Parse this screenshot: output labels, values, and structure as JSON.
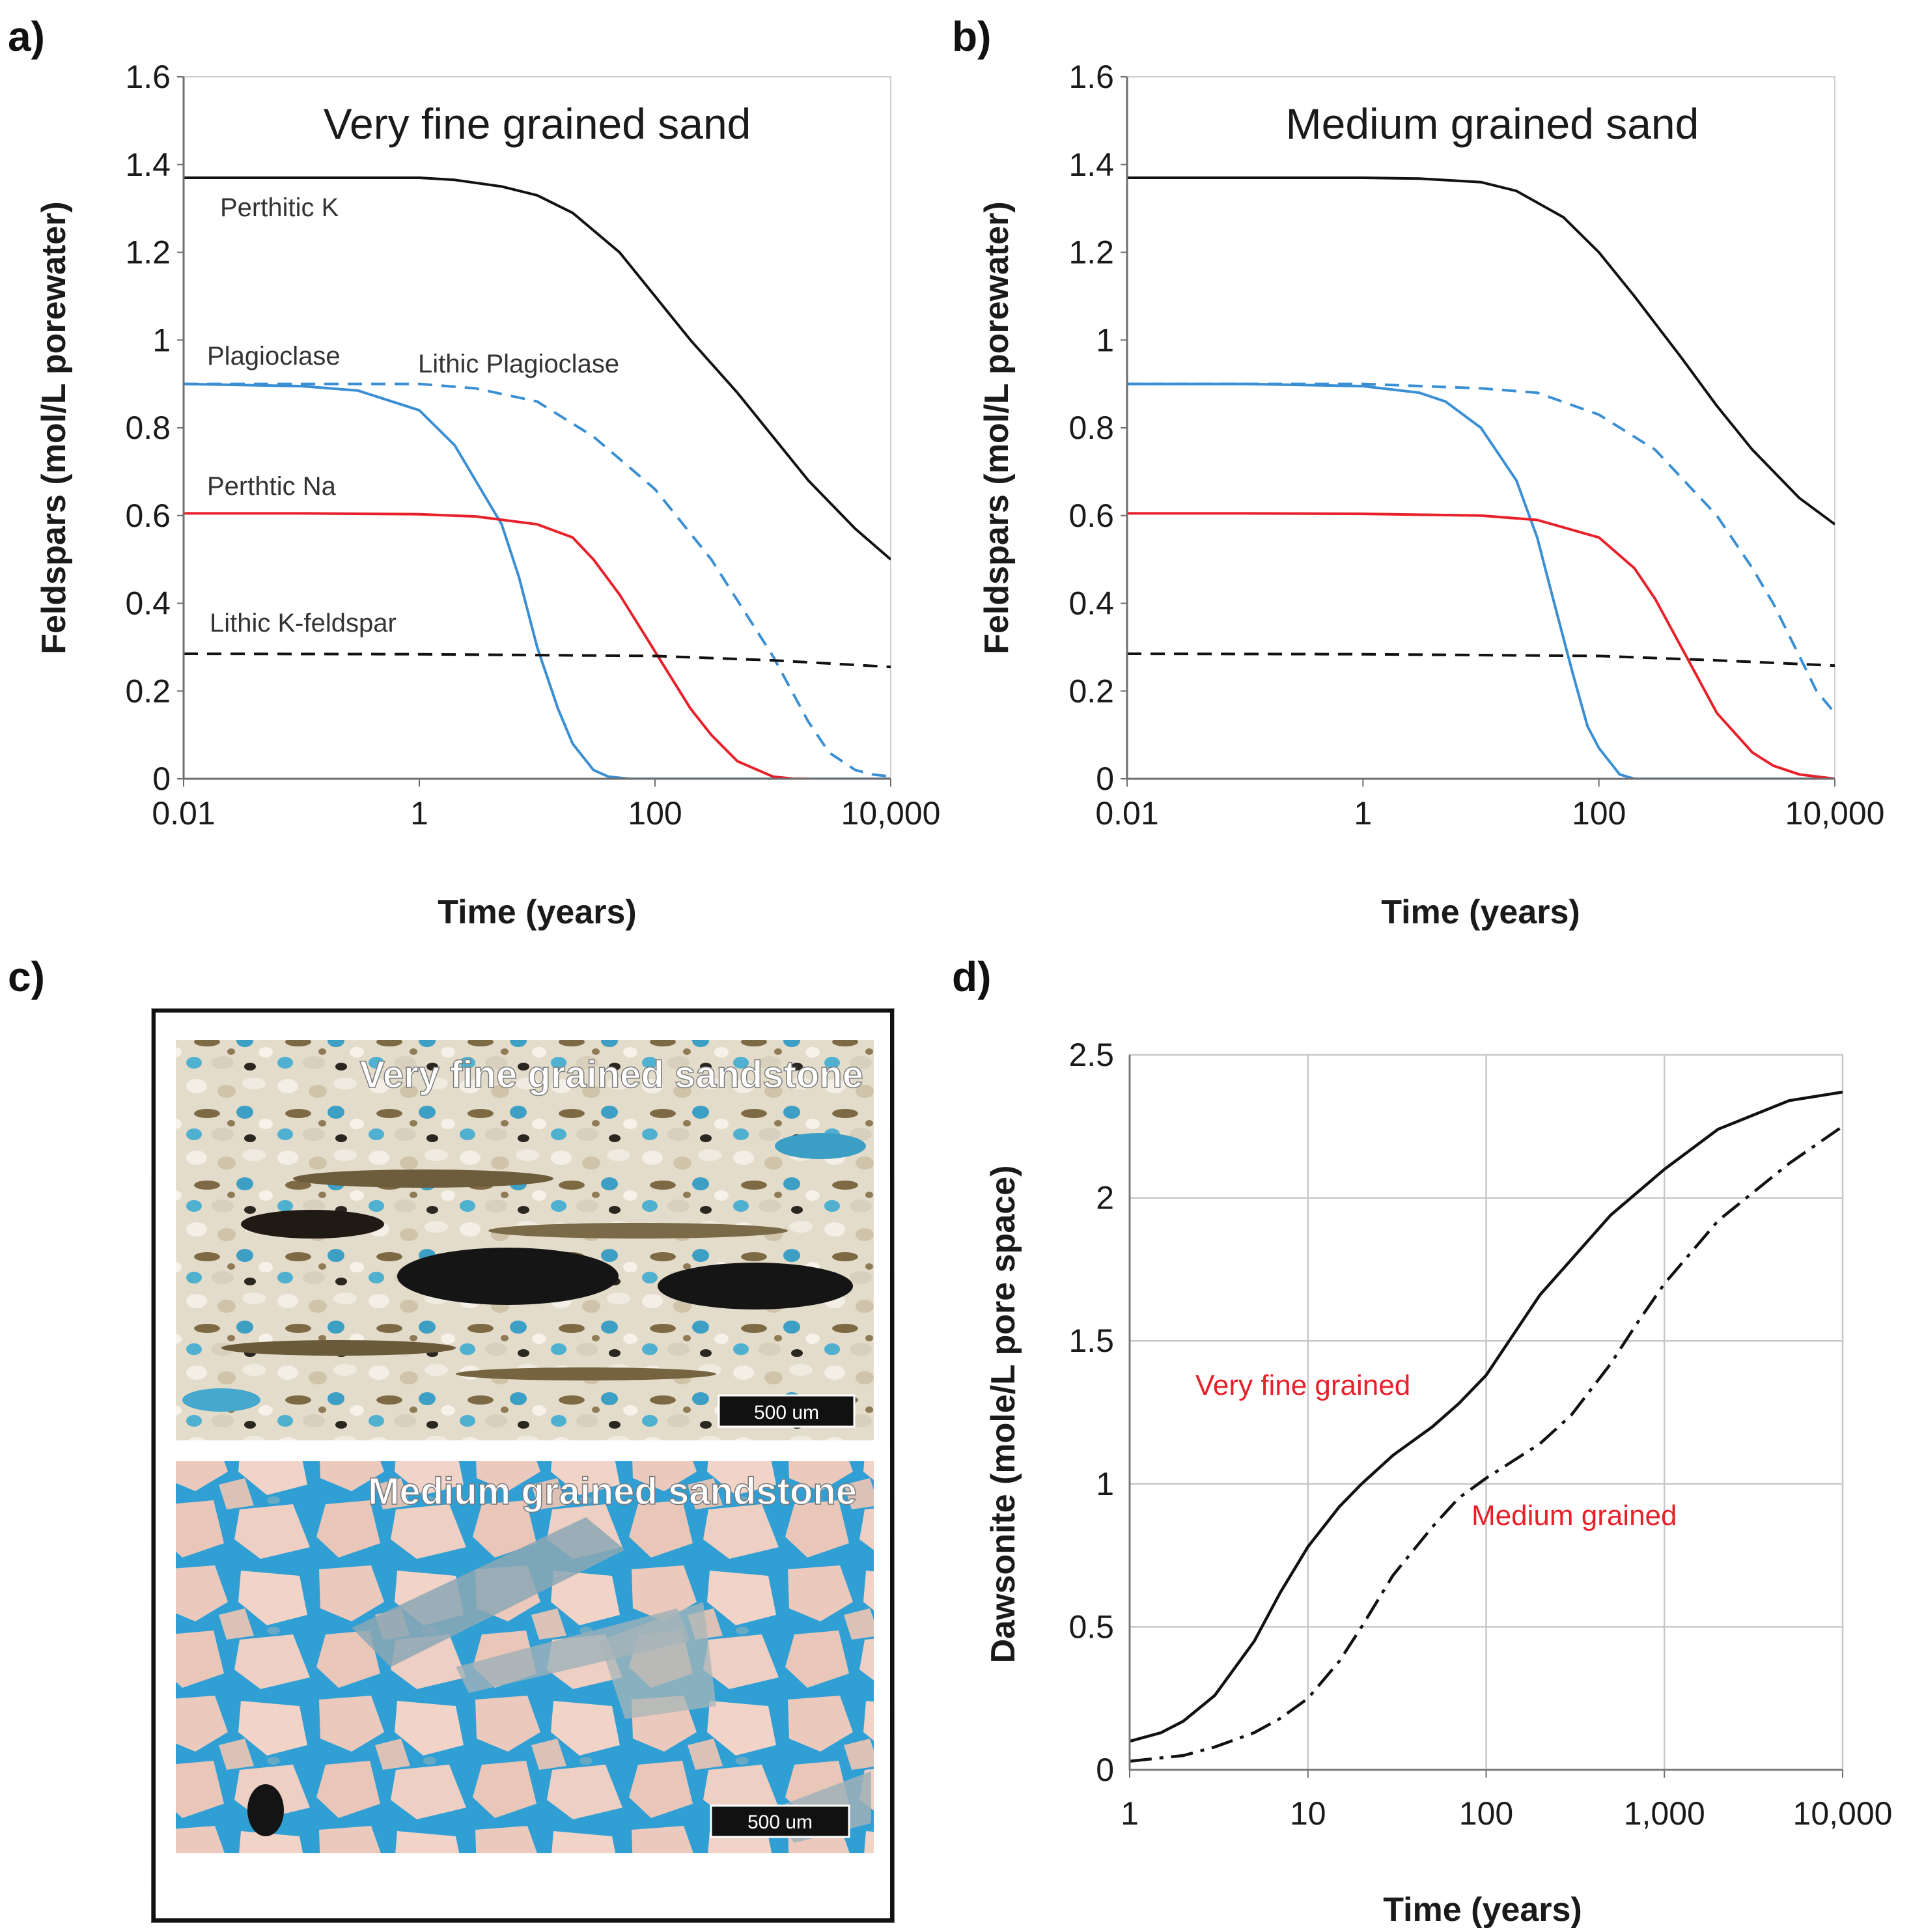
{
  "panel_labels": {
    "a": "a)",
    "b": "b)",
    "c": "c)",
    "d": "d)"
  },
  "colors": {
    "black": "#111111",
    "blue": "#3a8fd4",
    "red": "#e8202a",
    "grid": "#c8c8c8"
  },
  "micrographs": {
    "top": {
      "title": "Very fine grained sandstone",
      "scale_bar": "500 um"
    },
    "bottom": {
      "title": "Medium grained sandstone",
      "scale_bar": "500 um"
    }
  },
  "chart_data": [
    {
      "id": "a",
      "type": "line",
      "title": "Very fine grained sand",
      "xlabel": "Time (years)",
      "ylabel": "Feldspars (mol/L porewater)",
      "xscale": "log",
      "xlim": [
        0.01,
        10000
      ],
      "ylim": [
        0,
        1.6
      ],
      "grid": false,
      "xticks": [
        0.01,
        1,
        100,
        10000
      ],
      "xtick_labels": [
        "0.01",
        "1",
        "100",
        "10,000"
      ],
      "yticks": [
        0,
        0.2,
        0.4,
        0.6,
        0.8,
        1,
        1.2,
        1.4,
        1.6
      ],
      "ytick_labels": [
        "0",
        "0.2",
        "0.4",
        "0.6",
        "0.8",
        "1",
        "1.2",
        "1.4",
        "1.6"
      ],
      "series": [
        {
          "name": "Perthitic K",
          "color": "#111111",
          "dash": "solid",
          "x": [
            0.01,
            0.1,
            1,
            2,
            5,
            10,
            20,
            50,
            100,
            200,
            500,
            1000,
            2000,
            5000,
            10000
          ],
          "y": [
            1.37,
            1.37,
            1.37,
            1.365,
            1.35,
            1.33,
            1.29,
            1.2,
            1.1,
            1.0,
            0.88,
            0.78,
            0.68,
            0.57,
            0.5
          ]
        },
        {
          "name": "Plagioclase",
          "color": "#3a8fd4",
          "dash": "solid",
          "x": [
            0.01,
            0.1,
            0.3,
            1,
            2,
            3,
            5,
            7,
            10,
            15,
            20,
            30,
            40,
            60,
            100,
            1000,
            10000
          ],
          "y": [
            0.9,
            0.895,
            0.885,
            0.84,
            0.76,
            0.68,
            0.58,
            0.46,
            0.3,
            0.16,
            0.08,
            0.02,
            0.005,
            0,
            0,
            0,
            0
          ]
        },
        {
          "name": "Lithic Plagioclase",
          "color": "#3a8fd4",
          "dash": "dashed",
          "x": [
            0.01,
            0.1,
            1,
            3,
            10,
            30,
            100,
            300,
            1000,
            2000,
            3000,
            5000,
            7000,
            10000
          ],
          "y": [
            0.9,
            0.9,
            0.9,
            0.89,
            0.86,
            0.78,
            0.66,
            0.5,
            0.28,
            0.13,
            0.06,
            0.02,
            0.01,
            0.005
          ]
        },
        {
          "name": "Perthtic Na",
          "color": "#e8202a",
          "dash": "solid",
          "x": [
            0.01,
            0.1,
            1,
            3,
            10,
            20,
            30,
            50,
            100,
            200,
            300,
            500,
            1000,
            1500,
            2000
          ],
          "y": [
            0.605,
            0.605,
            0.603,
            0.598,
            0.58,
            0.55,
            0.5,
            0.42,
            0.29,
            0.16,
            0.1,
            0.04,
            0.005,
            0,
            0
          ]
        },
        {
          "name": "Lithic K-feldspar",
          "color": "#111111",
          "dash": "dashed",
          "x": [
            0.01,
            1,
            100,
            1000,
            10000
          ],
          "y": [
            0.285,
            0.284,
            0.28,
            0.27,
            0.255
          ]
        }
      ]
    },
    {
      "id": "b",
      "type": "line",
      "title": "Medium grained sand",
      "xlabel": "Time (years)",
      "ylabel": "Feldspars (mol/L porewater)",
      "xscale": "log",
      "xlim": [
        0.01,
        10000
      ],
      "ylim": [
        0,
        1.6
      ],
      "grid": false,
      "xticks": [
        0.01,
        1,
        100,
        10000
      ],
      "xtick_labels": [
        "0.01",
        "1",
        "100",
        "10,000"
      ],
      "yticks": [
        0,
        0.2,
        0.4,
        0.6,
        0.8,
        1,
        1.2,
        1.4,
        1.6
      ],
      "ytick_labels": [
        "0",
        "0.2",
        "0.4",
        "0.6",
        "0.8",
        "1",
        "1.2",
        "1.4",
        "1.6"
      ],
      "series": [
        {
          "name": "Perthitic K",
          "color": "#111111",
          "dash": "solid",
          "x": [
            0.01,
            0.1,
            1,
            3,
            10,
            20,
            50,
            100,
            200,
            500,
            1000,
            2000,
            5000,
            10000
          ],
          "y": [
            1.37,
            1.37,
            1.37,
            1.368,
            1.36,
            1.34,
            1.28,
            1.2,
            1.1,
            0.96,
            0.85,
            0.75,
            0.64,
            0.58
          ]
        },
        {
          "name": "Plagioclase",
          "color": "#3a8fd4",
          "dash": "solid",
          "x": [
            0.01,
            0.1,
            1,
            3,
            5,
            10,
            20,
            30,
            40,
            60,
            80,
            100,
            150,
            200,
            1000,
            10000
          ],
          "y": [
            0.9,
            0.9,
            0.895,
            0.88,
            0.86,
            0.8,
            0.68,
            0.55,
            0.42,
            0.24,
            0.12,
            0.07,
            0.01,
            0,
            0,
            0
          ]
        },
        {
          "name": "Lithic Plagioclase",
          "color": "#3a8fd4",
          "dash": "dashed",
          "x": [
            0.01,
            0.1,
            1,
            10,
            30,
            100,
            300,
            1000,
            2000,
            3000,
            5000,
            7000,
            10000
          ],
          "y": [
            0.9,
            0.9,
            0.9,
            0.89,
            0.88,
            0.83,
            0.75,
            0.6,
            0.48,
            0.4,
            0.28,
            0.2,
            0.15
          ]
        },
        {
          "name": "Perthtic Na",
          "color": "#e8202a",
          "dash": "solid",
          "x": [
            0.01,
            0.1,
            1,
            10,
            30,
            100,
            200,
            300,
            500,
            1000,
            2000,
            3000,
            5000,
            10000
          ],
          "y": [
            0.605,
            0.605,
            0.604,
            0.6,
            0.59,
            0.55,
            0.48,
            0.41,
            0.3,
            0.15,
            0.06,
            0.03,
            0.01,
            0
          ]
        },
        {
          "name": "Lithic K-feldspar",
          "color": "#111111",
          "dash": "dashed",
          "x": [
            0.01,
            1,
            100,
            1000,
            10000
          ],
          "y": [
            0.285,
            0.284,
            0.28,
            0.27,
            0.258
          ]
        }
      ]
    },
    {
      "id": "d",
      "type": "line",
      "title": "",
      "xlabel": "Time (years)",
      "ylabel": "Dawsonite (mole/L pore space)",
      "xscale": "log",
      "xlim": [
        1,
        10000
      ],
      "ylim": [
        0,
        2.5
      ],
      "grid": true,
      "xticks": [
        1,
        10,
        100,
        1000,
        10000
      ],
      "xtick_labels": [
        "1",
        "10",
        "100",
        "1,000",
        "10,000"
      ],
      "yticks": [
        0,
        0.5,
        1,
        1.5,
        2,
        2.5
      ],
      "ytick_labels": [
        "0",
        "0.5",
        "1",
        "1.5",
        "2",
        "2.5"
      ],
      "series": [
        {
          "name": "Very fine grained",
          "color": "#111111",
          "dash": "solid",
          "x": [
            1,
            1.5,
            2,
            3,
            5,
            7,
            10,
            15,
            20,
            30,
            50,
            70,
            100,
            200,
            500,
            1000,
            2000,
            5000,
            10000
          ],
          "y": [
            0.1,
            0.13,
            0.17,
            0.26,
            0.45,
            0.62,
            0.78,
            0.92,
            1.0,
            1.1,
            1.2,
            1.28,
            1.38,
            1.66,
            1.94,
            2.1,
            2.24,
            2.34,
            2.37
          ]
        },
        {
          "name": "Medium grained",
          "color": "#111111",
          "dash": "dashdot",
          "x": [
            1,
            2,
            3,
            5,
            7,
            10,
            15,
            20,
            30,
            50,
            70,
            100,
            200,
            300,
            500,
            700,
            1000,
            2000,
            5000,
            10000
          ],
          "y": [
            0.03,
            0.05,
            0.08,
            0.13,
            0.18,
            0.25,
            0.38,
            0.5,
            0.68,
            0.85,
            0.95,
            1.02,
            1.14,
            1.24,
            1.42,
            1.56,
            1.7,
            1.92,
            2.12,
            2.25
          ]
        }
      ],
      "annotations": [
        "Very fine grained",
        "Medium grained"
      ]
    }
  ]
}
